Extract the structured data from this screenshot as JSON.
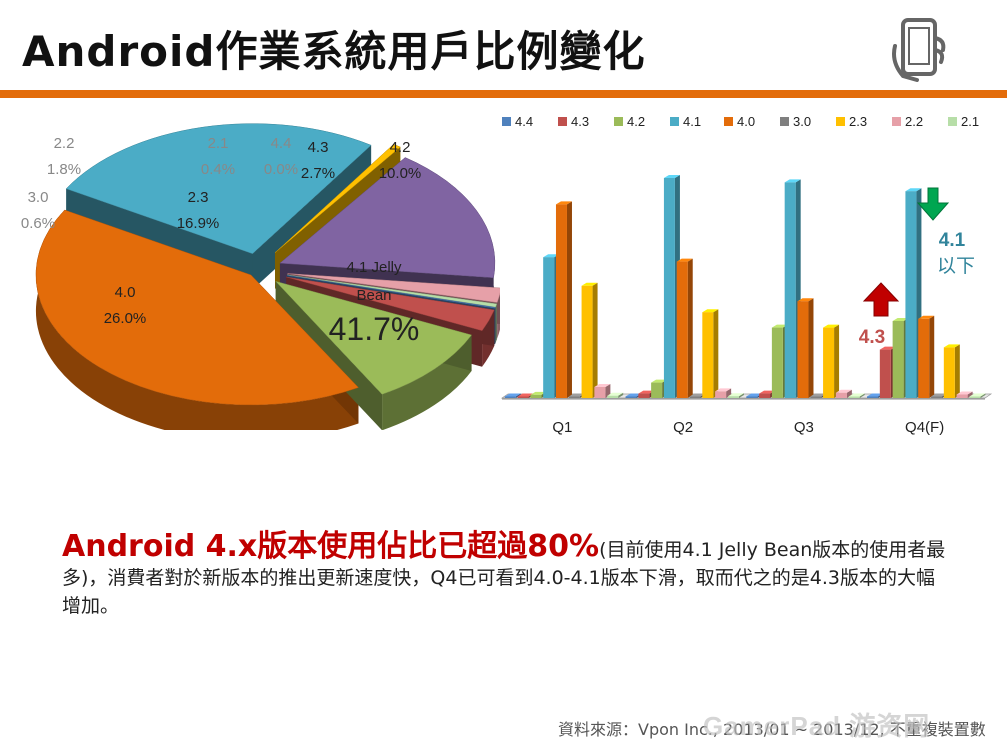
{
  "page": {
    "title": "Android作業系統用戶比例變化",
    "description_highlight": "Android 4.x版本使用佔比已超過80%",
    "description_rest": "(目前使用4.1 Jelly Bean版本的使用者最多)，消費者對於新版本的推出更新速度快，Q4已可看到4.0-4.1版本下滑，取而代之的是4.3版本的大幅增加。",
    "source": "資料來源：Vpon Inc., 2013/01 ~ 2013/12, 不重複裝置數",
    "watermark": "GamerPad 游资网",
    "icon": "smartphone-hand-icon",
    "accent_color": "#e36c0a"
  },
  "chart_data": [
    {
      "type": "pie",
      "title": "",
      "slices": [
        {
          "name": "4.1 Jelly Bean",
          "label_lines": [
            "4.1 Jelly",
            "Bean"
          ],
          "value": 41.7,
          "value_label": "41.7%",
          "color": "#e36c0a"
        },
        {
          "name": "4.0",
          "label_lines": [
            "4.0"
          ],
          "value": 26.0,
          "value_label": "26.0%",
          "color": "#4bacc6"
        },
        {
          "name": "3.0",
          "label_lines": [
            "3.0"
          ],
          "value": 0.6,
          "value_label": "0.6%",
          "color": "#ffc000"
        },
        {
          "name": "2.3",
          "label_lines": [
            "2.3"
          ],
          "value": 16.9,
          "value_label": "16.9%",
          "color": "#8064a2"
        },
        {
          "name": "2.2",
          "label_lines": [
            "2.2"
          ],
          "value": 1.8,
          "value_label": "1.8%",
          "color": "#e6a0a8"
        },
        {
          "name": "2.1",
          "label_lines": [
            "2.1"
          ],
          "value": 0.4,
          "value_label": "0.4%",
          "color": "#b7dea8"
        },
        {
          "name": "4.4",
          "label_lines": [
            "4.4"
          ],
          "value": 0.0,
          "value_label": "0.0%",
          "color": "#4f81bd"
        },
        {
          "name": "4.3",
          "label_lines": [
            "4.3"
          ],
          "value": 2.7,
          "value_label": "2.7%",
          "color": "#c0504d"
        },
        {
          "name": "4.2",
          "label_lines": [
            "4.2"
          ],
          "value": 10.0,
          "value_label": "10.0%",
          "color": "#9bbb59"
        }
      ]
    },
    {
      "type": "bar",
      "title": "",
      "categories": [
        "Q1",
        "Q2",
        "Q3",
        "Q4(F)"
      ],
      "ylim": [
        0,
        50
      ],
      "legend_position": "top",
      "series": [
        {
          "name": "4.4",
          "color": "#4f81bd",
          "values": [
            0,
            0,
            0,
            0
          ]
        },
        {
          "name": "4.3",
          "color": "#c0504d",
          "values": [
            0,
            1.0,
            1.0,
            11.0
          ]
        },
        {
          "name": "4.2",
          "color": "#9bbb59",
          "values": [
            0.7,
            3.5,
            16.0,
            17.5
          ]
        },
        {
          "name": "4.1",
          "color": "#4bacc6",
          "values": [
            32.0,
            50.0,
            49.0,
            47.0
          ]
        },
        {
          "name": "4.0",
          "color": "#e36c0a",
          "values": [
            44.0,
            31.0,
            22.0,
            18.0
          ]
        },
        {
          "name": "3.0",
          "color": "#7f7f7f",
          "values": [
            0.3,
            0.3,
            0.3,
            0.3
          ]
        },
        {
          "name": "2.3",
          "color": "#ffc000",
          "values": [
            25.5,
            19.5,
            16.0,
            11.5
          ]
        },
        {
          "name": "2.2",
          "color": "#e6a0a8",
          "values": [
            2.5,
            1.5,
            1.2,
            0.8
          ]
        },
        {
          "name": "2.1",
          "color": "#b7dea8",
          "values": [
            0.5,
            0.4,
            0.3,
            0.3
          ]
        }
      ],
      "annotations": [
        {
          "text": "4.1",
          "text2": "以下",
          "direction": "down",
          "color": "#31849b",
          "arrow_color": "#00a651"
        },
        {
          "text": "4.3",
          "direction": "up",
          "color": "#c0504d",
          "arrow_color": "#c00000"
        }
      ]
    }
  ]
}
